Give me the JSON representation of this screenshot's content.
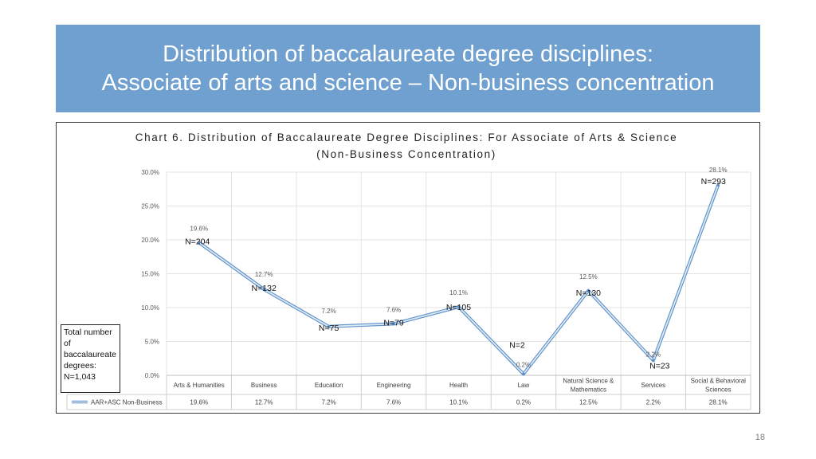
{
  "slide": {
    "title_line1": "Distribution of baccalaureate degree disciplines:",
    "title_line2": "Associate of arts and science – Non-business concentration",
    "page_number": "18",
    "banner_color": "#6fa0cf"
  },
  "total_box": {
    "line1": "Total number",
    "line2": "of",
    "line3": "baccalaureate",
    "line4": "degrees:",
    "line5": "N=1,043"
  },
  "chart_data": {
    "type": "line",
    "title": "Chart 6. Distribution of Baccalaureate Degree Disciplines: For Associate of Arts & Science (Non-Business Concentration)",
    "categories": [
      "Arts & Humanities",
      "Business",
      "Education",
      "Engineering",
      "Health",
      "Law",
      "Natural Science & Mathematics",
      "Services",
      "Social & Behavioral Sciences"
    ],
    "category_lines": [
      [
        "Arts & Humanities"
      ],
      [
        "Business"
      ],
      [
        "Education"
      ],
      [
        "Engineering"
      ],
      [
        "Health"
      ],
      [
        "Law"
      ],
      [
        "Natural Science &",
        "Mathematics"
      ],
      [
        "Services"
      ],
      [
        "Social & Behavioral",
        "Sciences"
      ]
    ],
    "series": [
      {
        "name": "AAR+ASC Non-Business",
        "values": [
          19.6,
          12.7,
          7.2,
          7.6,
          10.1,
          0.2,
          12.5,
          2.2,
          28.1
        ],
        "value_labels": [
          "19.6%",
          "12.7%",
          "7.2%",
          "7.6%",
          "10.1%",
          "0.2%",
          "12.5%",
          "2.2%",
          "28.1%"
        ],
        "counts": [
          "N=204",
          "N=132",
          "N=75",
          "N=79",
          "N=105",
          "N=2",
          "N=130",
          "N=23",
          "N=293"
        ],
        "color": "#9dc3e6"
      }
    ],
    "ylim": [
      0,
      30
    ],
    "yticks": [
      "0.0%",
      "5.0%",
      "10.0%",
      "15.0%",
      "20.0%",
      "25.0%",
      "30.0%"
    ],
    "ytick_values": [
      0,
      5,
      10,
      15,
      20,
      25,
      30
    ],
    "grid": true,
    "data_table": true
  }
}
